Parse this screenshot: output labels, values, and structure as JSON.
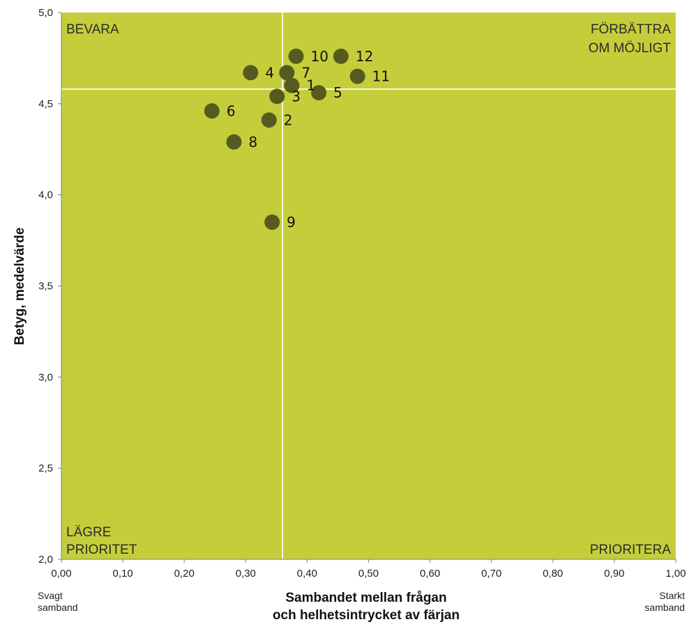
{
  "chart_data": {
    "type": "scatter",
    "xlabel_line1": "Sambandet mellan frågan",
    "xlabel_line2": "och helhetsintrycket av färjan",
    "ylabel": "Betyg, medelvärde",
    "xlim": [
      0,
      1
    ],
    "ylim": [
      2,
      5
    ],
    "x_ticks": [
      "0,00",
      "0,10",
      "0,20",
      "0,30",
      "0,40",
      "0,50",
      "0,60",
      "0,70",
      "0,80",
      "0,90",
      "1,00"
    ],
    "y_ticks": [
      "2,0",
      "2,5",
      "3,0",
      "3,5",
      "4,0",
      "4,5",
      "5,0"
    ],
    "x_note_left": [
      "Svagt",
      "samband"
    ],
    "x_note_right": [
      "Starkt",
      "samband"
    ],
    "quadrants": {
      "top_left": [
        "BEVARA"
      ],
      "top_right": [
        "FÖRBÄTTRA",
        "OM MÖJLIGT"
      ],
      "bottom_left": [
        "LÄGRE",
        "PRIORITET"
      ],
      "bottom_right": [
        "PRIORITERA"
      ]
    },
    "reference_lines": {
      "x": 0.36,
      "y": 4.58
    },
    "plot_background": "#c5ce3a",
    "marker_color": "#555b1e",
    "grid": false,
    "points": [
      {
        "label": "1",
        "x": 0.375,
        "y": 4.6
      },
      {
        "label": "2",
        "x": 0.338,
        "y": 4.41
      },
      {
        "label": "3",
        "x": 0.351,
        "y": 4.54
      },
      {
        "label": "4",
        "x": 0.308,
        "y": 4.67
      },
      {
        "label": "5",
        "x": 0.419,
        "y": 4.56
      },
      {
        "label": "6",
        "x": 0.245,
        "y": 4.46
      },
      {
        "label": "7",
        "x": 0.367,
        "y": 4.67
      },
      {
        "label": "8",
        "x": 0.281,
        "y": 4.29
      },
      {
        "label": "9",
        "x": 0.343,
        "y": 3.85
      },
      {
        "label": "10",
        "x": 0.382,
        "y": 4.76
      },
      {
        "label": "11",
        "x": 0.482,
        "y": 4.65
      },
      {
        "label": "12",
        "x": 0.455,
        "y": 4.76
      }
    ]
  }
}
